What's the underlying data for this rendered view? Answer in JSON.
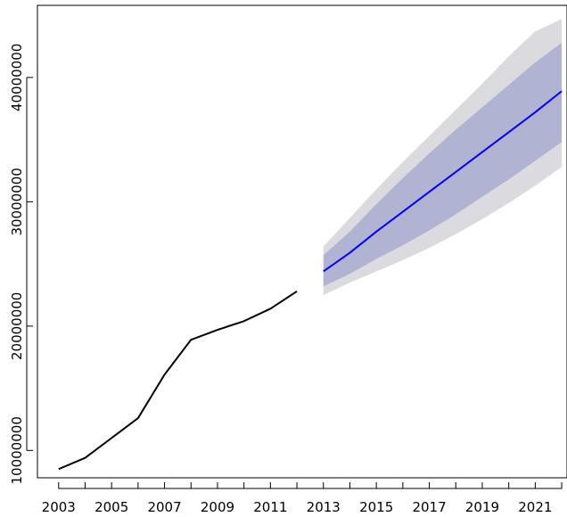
{
  "chart_data": {
    "type": "line",
    "title": "",
    "xlabel": "",
    "ylabel": "",
    "xlim": [
      2002.2,
      2022.2
    ],
    "ylim": [
      7800000,
      45800000
    ],
    "x_ticks": [
      2003,
      2004,
      2005,
      2006,
      2007,
      2008,
      2009,
      2010,
      2011,
      2012,
      2013,
      2014,
      2015,
      2016,
      2017,
      2018,
      2019,
      2020,
      2021,
      2022
    ],
    "x_tick_labels": [
      "2003",
      "2005",
      "2007",
      "2009",
      "2011",
      "2013",
      "2015",
      "2017",
      "2019",
      "2021"
    ],
    "y_ticks": [
      10000000,
      20000000,
      30000000,
      40000000
    ],
    "y_tick_labels": [
      "10000000",
      "20000000",
      "30000000",
      "40000000"
    ],
    "grid": false,
    "series": [
      {
        "kind": "observed",
        "color": "#000000",
        "x": [
          2003,
          2004,
          2005,
          2006,
          2007,
          2008,
          2009,
          2010,
          2011,
          2012
        ],
        "values": [
          8500000,
          9400000,
          11000000,
          12600000,
          16100000,
          18900000,
          19700000,
          20400000,
          21400000,
          22800000
        ]
      },
      {
        "kind": "forecast",
        "color": "#0000FF",
        "x": [
          2013,
          2014,
          2015,
          2016,
          2017,
          2018,
          2019,
          2020,
          2021,
          2022
        ],
        "values": [
          24400000,
          25900000,
          27600000,
          29200000,
          30800000,
          32400000,
          34000000,
          35600000,
          37200000,
          38900000
        ],
        "band_80": {
          "color": "#B0B3D1",
          "lower": [
            23200000,
            24200000,
            25400000,
            26500000,
            27700000,
            29000000,
            30400000,
            31800000,
            33300000,
            34800000
          ],
          "upper": [
            25700000,
            27600000,
            29800000,
            31900000,
            33900000,
            35800000,
            37600000,
            39400000,
            41200000,
            42800000
          ]
        },
        "band_95": {
          "color": "#DADADF",
          "lower": [
            22500000,
            23500000,
            24400000,
            25300000,
            26300000,
            27400000,
            28600000,
            29900000,
            31300000,
            32800000
          ],
          "upper": [
            26400000,
            28700000,
            31000000,
            33200000,
            35300000,
            37400000,
            39500000,
            41700000,
            43700000,
            44700000
          ]
        }
      }
    ]
  }
}
